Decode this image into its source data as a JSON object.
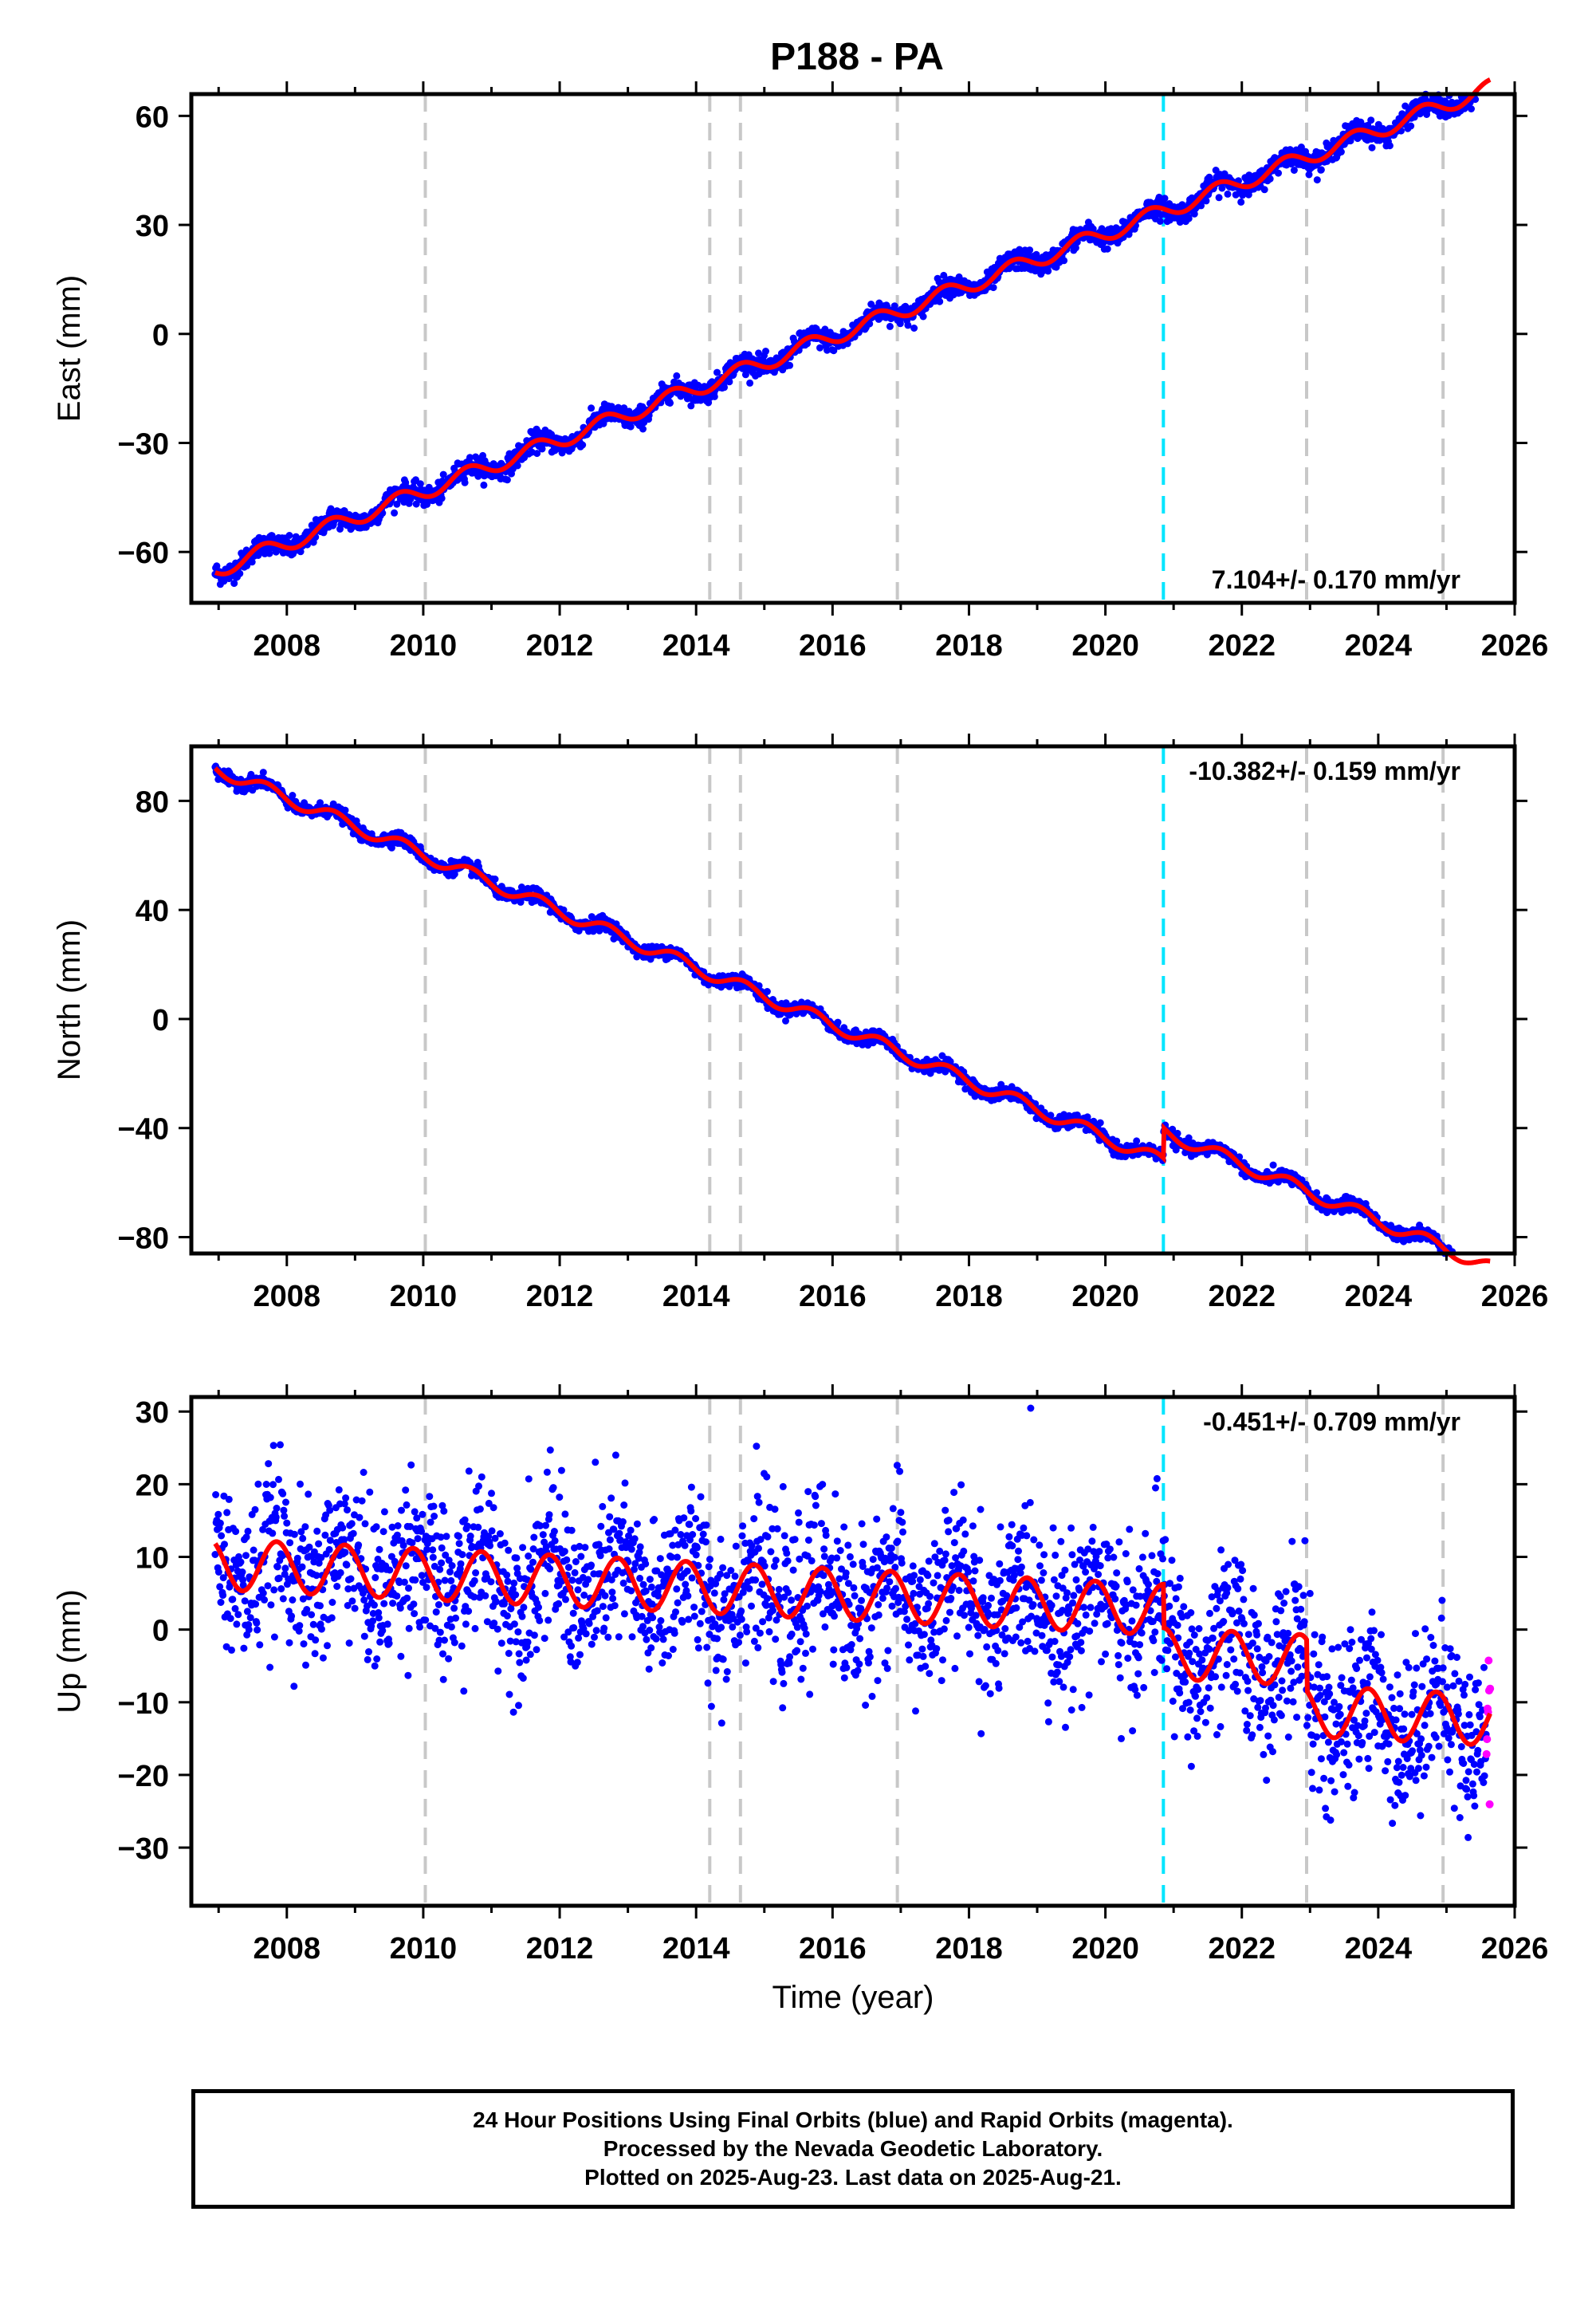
{
  "chart_data": {
    "title": "P188 - PA",
    "xlabel": "Time (year)",
    "xlim": [
      2006.6,
      2026.0
    ],
    "xticks": [
      2008,
      2010,
      2012,
      2014,
      2016,
      2018,
      2020,
      2022,
      2024,
      2026
    ],
    "xtick_labels": [
      "2008",
      "2010",
      "2012",
      "2014",
      "2016",
      "2018",
      "2020",
      "2022",
      "2024",
      "2026"
    ],
    "event_lines_gray": [
      2010.03,
      2014.2,
      2014.65,
      2016.95,
      2022.95,
      2024.95
    ],
    "event_line_cyan": 2020.85,
    "data_start": 2006.95,
    "data_end": 2025.64,
    "rapid_start": 2025.58,
    "colors": {
      "final": "#0000ff",
      "rapid": "#ff00ff",
      "model": "#ff0000",
      "event_gray": "#c8c8c8",
      "event_cyan": "#00e5ff"
    },
    "panels": [
      {
        "type": "scatter",
        "ylabel": "East (mm)",
        "ylim": [
          -74,
          66
        ],
        "yticks": [
          -60,
          -30,
          0,
          30,
          60
        ],
        "ytick_labels": [
          "−60",
          "−30",
          "0",
          "30",
          "60"
        ],
        "rate_label": "7.104+/- 0.170 mm/yr",
        "rate_position": "bottom-right",
        "model": {
          "offset": -65,
          "rate": 7.104,
          "amp": 2.2,
          "phase": 0.4,
          "offsets": []
        },
        "noise": 1.4
      },
      {
        "type": "scatter",
        "ylabel": "North (mm)",
        "ylim": [
          -86,
          100
        ],
        "yticks": [
          -80,
          -40,
          0,
          40,
          80
        ],
        "ytick_labels": [
          "−80",
          "−40",
          "0",
          "40",
          "80"
        ],
        "rate_label": "-10.382+/- 0.159 mm/yr",
        "rate_position": "top-right",
        "model": {
          "offset": 92,
          "rate": -10.382,
          "amp": 2.4,
          "phase": 0.45,
          "offsets": [
            [
              2020.85,
              11
            ]
          ]
        },
        "noise": 1.2
      },
      {
        "type": "scatter",
        "ylabel": "Up (mm)",
        "ylim": [
          -38,
          32
        ],
        "yticks": [
          -30,
          -20,
          -10,
          0,
          10,
          20,
          30
        ],
        "ytick_labels": [
          "−30",
          "−20",
          "−10",
          "0",
          "10",
          "20",
          "30"
        ],
        "rate_label": "-0.451+/- 0.709 mm/yr",
        "rate_position": "top-right",
        "model": {
          "offset": 9,
          "rate": -0.451,
          "amp": 3.5,
          "phase": 0.6,
          "offsets": [
            [
              2020.85,
              -6
            ],
            [
              2022.95,
              -7
            ]
          ]
        },
        "noise": 5.5
      }
    ]
  },
  "footer": {
    "line1": "24 Hour Positions Using Final Orbits (blue) and Rapid Orbits (magenta).",
    "line2": "Processed by the Nevada Geodetic Laboratory.",
    "line3": "Plotted on 2025-Aug-23. Last data on 2025-Aug-21."
  }
}
